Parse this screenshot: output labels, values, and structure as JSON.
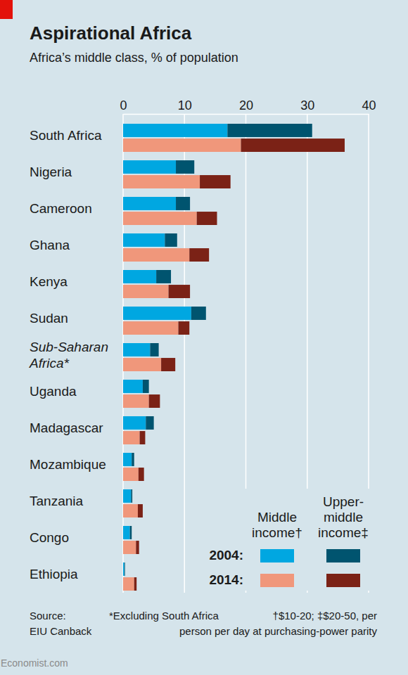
{
  "chart_data": {
    "type": "bar",
    "orientation": "horizontal",
    "stacked": true,
    "grid": true,
    "title": "Aspirational Africa",
    "subtitle": "Africa’s middle class, % of population",
    "categories": [
      "South Africa",
      "Nigeria",
      "Cameroon",
      "Ghana",
      "Kenya",
      "Sudan",
      "Sub-Saharan Africa*",
      "Uganda",
      "Madagascar",
      "Mozambique",
      "Tanzania",
      "Congo",
      "Ethiopia"
    ],
    "xlim": [
      0,
      40
    ],
    "xticks": [
      0,
      10,
      20,
      30,
      40
    ],
    "stack_names": [
      "Middle income†",
      "Upper-middle income‡"
    ],
    "series": [
      {
        "name": "2004:",
        "stack": [
          {
            "color": "#00a7e1",
            "values": [
              17.0,
              8.6,
              8.6,
              6.8,
              5.4,
              11.1,
              4.4,
              3.2,
              3.7,
              1.4,
              1.3,
              1.1,
              0.2
            ]
          },
          {
            "color": "#00546f",
            "values": [
              13.8,
              3.0,
              2.3,
              2.0,
              2.4,
              2.4,
              1.4,
              1.0,
              1.3,
              0.4,
              0.2,
              0.3,
              0.1
            ]
          }
        ]
      },
      {
        "name": "2014:",
        "stack": [
          {
            "color": "#f0977b",
            "values": [
              19.2,
              12.5,
              12.0,
              10.8,
              7.4,
              9.0,
              6.2,
              4.2,
              2.7,
              2.5,
              2.4,
              2.1,
              1.8
            ]
          },
          {
            "color": "#7b2216",
            "values": [
              16.9,
              5.0,
              3.3,
              3.2,
              3.5,
              1.8,
              2.3,
              1.8,
              0.9,
              0.9,
              0.8,
              0.5,
              0.4
            ]
          }
        ]
      }
    ],
    "source": [
      "Source:",
      "EIU Canback"
    ],
    "footnotes": [
      "*Excluding South Africa",
      "†$10-20; ‡$20-50, per",
      "person per day at purchasing-power parity"
    ],
    "brand": "Economist.com"
  }
}
